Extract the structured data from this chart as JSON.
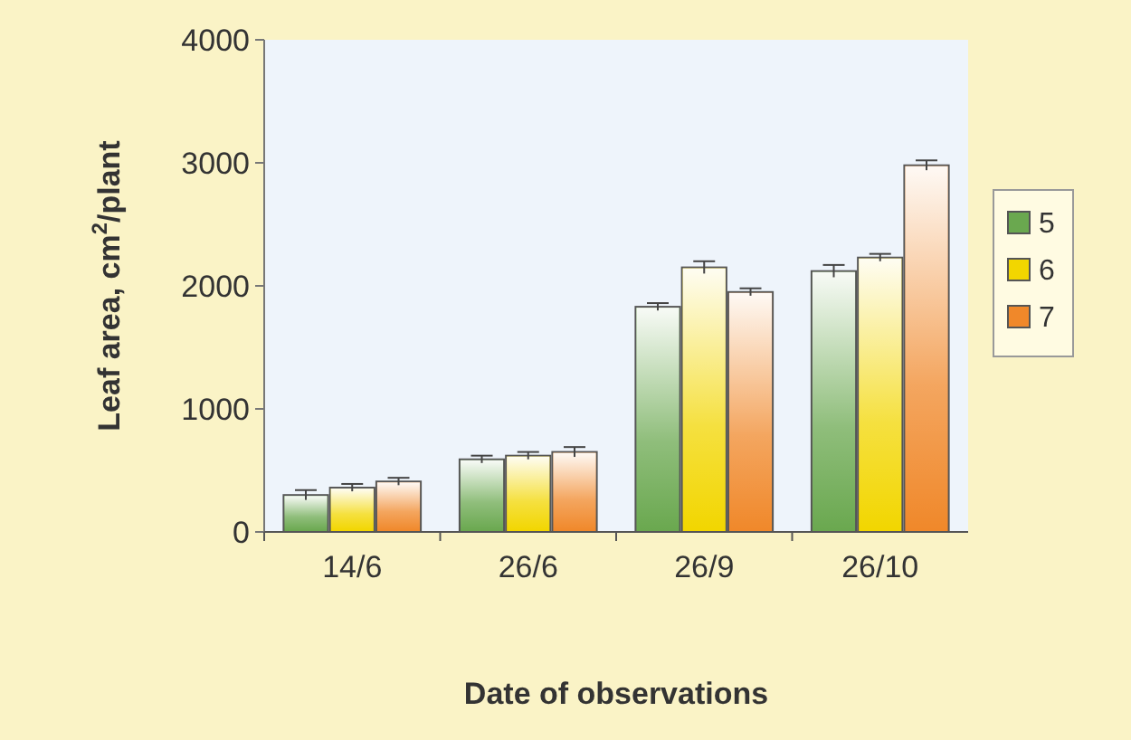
{
  "chart_data": {
    "type": "bar",
    "xlabel": "Date of observations",
    "ylabel": "Leaf area, cm$^{2}$/plant",
    "categories": [
      "14/6",
      "26/6",
      "26/9",
      "26/10"
    ],
    "series": [
      {
        "name": "5",
        "color": "#6aa84f",
        "values": [
          300,
          590,
          1830,
          2120
        ],
        "errors": [
          40,
          30,
          30,
          50
        ]
      },
      {
        "name": "6",
        "color": "#f2d600",
        "values": [
          360,
          620,
          2150,
          2230
        ],
        "errors": [
          30,
          30,
          50,
          30
        ]
      },
      {
        "name": "7",
        "color": "#f0882a",
        "values": [
          410,
          650,
          1950,
          2980
        ],
        "errors": [
          30,
          40,
          30,
          40
        ]
      }
    ],
    "ylim": [
      0,
      4000
    ],
    "yticks": [
      0,
      1000,
      2000,
      3000,
      4000
    ],
    "grid": false,
    "legend": "right"
  }
}
